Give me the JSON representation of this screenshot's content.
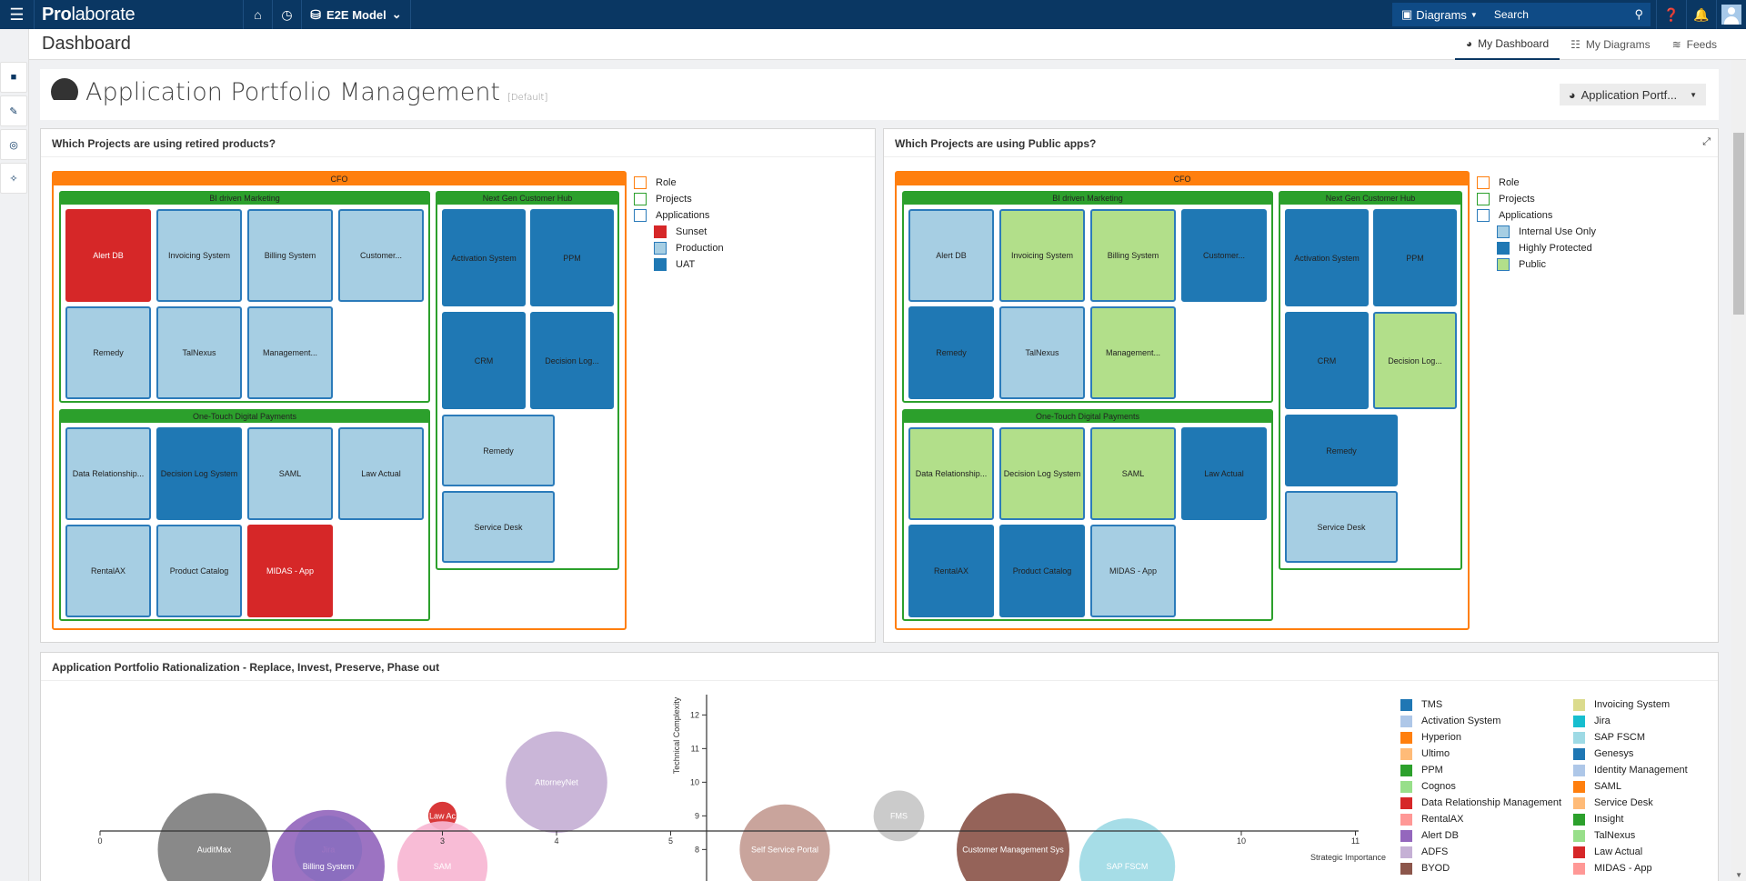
{
  "topbar": {
    "brand_bold": "Pro",
    "brand_light": "laborate",
    "model_label": "E2E Model",
    "diagrams_label": "Diagrams",
    "search_placeholder": "Search"
  },
  "subheader": {
    "title": "Dashboard",
    "tabs": [
      {
        "label": "My Dashboard",
        "active": true
      },
      {
        "label": "My Diagrams",
        "active": false
      },
      {
        "label": "Feeds",
        "active": false
      }
    ]
  },
  "dashboard": {
    "title": "Application Portfolio Management",
    "badge": "[Default]",
    "selector_label": "Application Portf..."
  },
  "panels": {
    "retired": {
      "title": "Which Projects are using retired products?",
      "legend": {
        "role": "Role",
        "projects": "Projects",
        "applications": "Applications",
        "statuses": [
          {
            "label": "Sunset",
            "color": "#d62728"
          },
          {
            "label": "Production",
            "color": "#a6cee3"
          },
          {
            "label": "UAT",
            "color": "#1f78b4"
          }
        ]
      }
    },
    "public": {
      "title": "Which Projects are using Public apps?",
      "legend": {
        "role": "Role",
        "projects": "Projects",
        "applications": "Applications",
        "statuses": [
          {
            "label": "Internal Use Only",
            "color": "#a6cee3"
          },
          {
            "label": "Highly Protected",
            "color": "#1f78b4"
          },
          {
            "label": "Public",
            "color": "#b2df8a"
          }
        ]
      }
    },
    "rationalization": {
      "title": "Application Portfolio Rationalization - Replace, Invest, Preserve, Phase out"
    }
  },
  "treemap": {
    "role": "CFO",
    "projects": [
      {
        "name": "BI driven Marketing"
      },
      {
        "name": "One-Touch Digital Payments"
      },
      {
        "name": "Next Gen Customer Hub"
      }
    ],
    "retired_apps": {
      "bi": [
        {
          "name": "Alert DB",
          "status": "sunset"
        },
        {
          "name": "Invoicing System",
          "status": "prod"
        },
        {
          "name": "Billing System",
          "status": "prod"
        },
        {
          "name": "Customer...",
          "status": "prod"
        },
        {
          "name": "Remedy",
          "status": "prod"
        },
        {
          "name": "TalNexus",
          "status": "prod"
        },
        {
          "name": "Management...",
          "status": "prod"
        }
      ],
      "otdp": [
        {
          "name": "Data Relationship...",
          "status": "prod"
        },
        {
          "name": "Decision Log System",
          "status": "uat"
        },
        {
          "name": "SAML",
          "status": "prod"
        },
        {
          "name": "Law Actual",
          "status": "prod"
        },
        {
          "name": "RentalAX",
          "status": "prod"
        },
        {
          "name": "Product Catalog",
          "status": "prod"
        },
        {
          "name": "MIDAS - App",
          "status": "sunset"
        }
      ],
      "ngch": [
        {
          "name": "Activation System",
          "status": "uat"
        },
        {
          "name": "PPM",
          "status": "uat"
        },
        {
          "name": "CRM",
          "status": "uat"
        },
        {
          "name": "Decision Log...",
          "status": "uat"
        },
        {
          "name": "Remedy",
          "status": "prod"
        },
        {
          "name": "Service Desk",
          "status": "prod"
        }
      ]
    },
    "public_apps": {
      "bi": [
        {
          "name": "Alert DB",
          "status": "internal"
        },
        {
          "name": "Invoicing System",
          "status": "public"
        },
        {
          "name": "Billing System",
          "status": "public"
        },
        {
          "name": "Customer...",
          "status": "protected"
        },
        {
          "name": "Remedy",
          "status": "protected"
        },
        {
          "name": "TalNexus",
          "status": "internal"
        },
        {
          "name": "Management...",
          "status": "public"
        }
      ],
      "otdp": [
        {
          "name": "Data Relationship...",
          "status": "public"
        },
        {
          "name": "Decision Log System",
          "status": "public"
        },
        {
          "name": "SAML",
          "status": "public"
        },
        {
          "name": "Law Actual",
          "status": "protected"
        },
        {
          "name": "RentalAX",
          "status": "protected"
        },
        {
          "name": "Product Catalog",
          "status": "protected"
        },
        {
          "name": "MIDAS - App",
          "status": "internal"
        }
      ],
      "ngch": [
        {
          "name": "Activation System",
          "status": "protected"
        },
        {
          "name": "PPM",
          "status": "protected"
        },
        {
          "name": "CRM",
          "status": "protected"
        },
        {
          "name": "Decision Log...",
          "status": "public"
        },
        {
          "name": "Remedy",
          "status": "protected"
        },
        {
          "name": "Service Desk",
          "status": "internal"
        }
      ]
    }
  },
  "chart_data": {
    "type": "scatter",
    "title": "Application Portfolio Rationalization - Replace, Invest, Preserve, Phase out",
    "xlabel": "Strategic Importance",
    "ylabel": "Technical Complexity",
    "xlim": [
      0,
      11
    ],
    "ylim_visible": [
      7,
      12
    ],
    "x_ticks": [
      "0",
      "3",
      "4",
      "5",
      "10",
      "11"
    ],
    "y_ticks": [
      "8",
      "9",
      "10",
      "11",
      "12"
    ],
    "points": [
      {
        "label": "AuditMax",
        "x": 1,
        "y": 8,
        "r": 1.0,
        "color": "#7f7f7f"
      },
      {
        "label": "Jira",
        "x": 2,
        "y": 8,
        "r": 0.6,
        "color": "#17becf"
      },
      {
        "label": "Billing System",
        "x": 2,
        "y": 7.5,
        "r": 1.0,
        "color": "#9467bd"
      },
      {
        "label": "Law Ac",
        "x": 3,
        "y": 9,
        "r": 0.25,
        "color": "#d62728"
      },
      {
        "label": "SAM",
        "x": 3,
        "y": 7.5,
        "r": 0.8,
        "color": "#f7b6d2"
      },
      {
        "label": "AttorneyNet",
        "x": 4,
        "y": 10,
        "r": 0.9,
        "color": "#c5b0d5"
      },
      {
        "label": "Self Service Portal",
        "x": 6,
        "y": 8,
        "r": 0.8,
        "color": "#c49c94"
      },
      {
        "label": "FMS",
        "x": 7,
        "y": 9,
        "r": 0.45,
        "color": "#c7c7c7"
      },
      {
        "label": "Customer Management Sys",
        "x": 8,
        "y": 8,
        "r": 1.0,
        "color": "#8c564b"
      },
      {
        "label": "SAP FSCM",
        "x": 9,
        "y": 7.5,
        "r": 0.85,
        "color": "#9edae5"
      }
    ],
    "legend": [
      {
        "label": "TMS",
        "color": "#1f77b4"
      },
      {
        "label": "Activation System",
        "color": "#aec7e8"
      },
      {
        "label": "Hyperion",
        "color": "#ff7f0e"
      },
      {
        "label": "Ultimo",
        "color": "#ffbb78"
      },
      {
        "label": "PPM",
        "color": "#2ca02c"
      },
      {
        "label": "Cognos",
        "color": "#98df8a"
      },
      {
        "label": "Data Relationship Management",
        "color": "#d62728"
      },
      {
        "label": "RentalAX",
        "color": "#ff9896"
      },
      {
        "label": "Alert DB",
        "color": "#9467bd"
      },
      {
        "label": "ADFS",
        "color": "#c5b0d5"
      },
      {
        "label": "BYOD",
        "color": "#8c564b"
      },
      {
        "label": "Invoicing System",
        "color": "#dbdb8d"
      },
      {
        "label": "Jira",
        "color": "#17becf"
      },
      {
        "label": "SAP FSCM",
        "color": "#9edae5"
      },
      {
        "label": "Genesys",
        "color": "#1f77b4"
      },
      {
        "label": "Identity Management",
        "color": "#aec7e8"
      },
      {
        "label": "SAML",
        "color": "#ff7f0e"
      },
      {
        "label": "Service Desk",
        "color": "#ffbb78"
      },
      {
        "label": "Insight",
        "color": "#2ca02c"
      },
      {
        "label": "TalNexus",
        "color": "#98df8a"
      },
      {
        "label": "Law Actual",
        "color": "#d62728"
      },
      {
        "label": "MIDAS - App",
        "color": "#ff9896"
      }
    ]
  }
}
